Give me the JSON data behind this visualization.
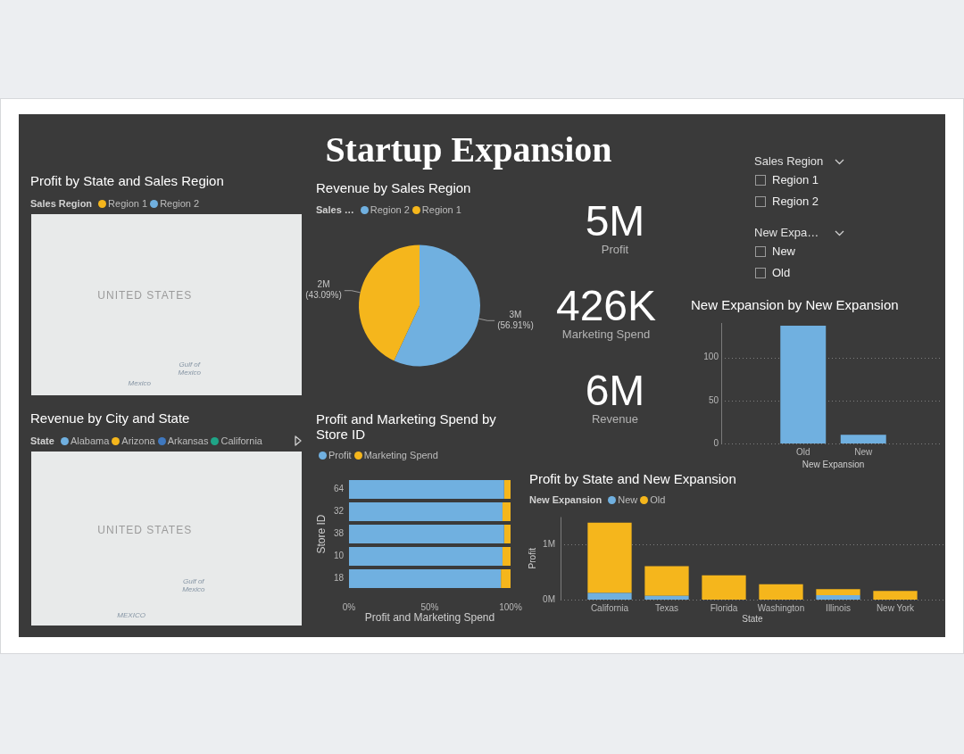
{
  "chart_data": [
    {
      "type": "other",
      "title": "Startup Expansion"
    },
    {
      "type": "other",
      "title": "Profit by State and Sales Region",
      "legend_title": "Sales Region",
      "legend": "top left",
      "series": [
        {
          "name": "Region 1",
          "color": "#f5b61c"
        },
        {
          "name": "Region 2",
          "color": "#70b0e0"
        }
      ],
      "annotations": [
        "UNITED STATES",
        "Gulf of Mexico",
        "Mexico"
      ]
    },
    {
      "type": "pie",
      "title": "Revenue by Sales Region",
      "legend_title": "Sales …",
      "legend": "top left",
      "categories": [
        "Region 2",
        "Region 1"
      ],
      "values": [
        56.91,
        43.09
      ],
      "colors": [
        "#70b0e0",
        "#f5b61c"
      ],
      "value_labels": [
        "3M (56.91%)",
        "2M (43.09%)"
      ]
    },
    {
      "type": "other",
      "categories": [
        "Profit",
        "Marketing Spend",
        "Revenue"
      ],
      "value_labels": [
        "5M",
        "426K",
        "6M"
      ]
    },
    {
      "type": "other",
      "title": "Sales Region",
      "categories": [
        "Region 1",
        "Region 2"
      ]
    },
    {
      "type": "other",
      "title": "New Expa…",
      "categories": [
        "New",
        "Old"
      ]
    },
    {
      "type": "bar",
      "title": "New Expansion by New Expansion",
      "categories": [
        "Old",
        "New"
      ],
      "values": [
        137,
        10
      ],
      "color": "#70b0e0",
      "ylim": [
        0,
        140
      ],
      "yticks": [
        0,
        50,
        100
      ],
      "xlabel": "New Expansion",
      "grid": "y"
    },
    {
      "type": "other",
      "title": "Revenue by City and State",
      "legend_title": "State",
      "legend": "top left",
      "series": [
        {
          "name": "Alabama",
          "color": "#70b0e0"
        },
        {
          "name": "Arizona",
          "color": "#f5b61c"
        },
        {
          "name": "Arkansas",
          "color": "#3f78bf"
        },
        {
          "name": "California",
          "color": "#1fa587"
        }
      ],
      "annotations": [
        "UNITED STATES",
        "Gulf of Mexico",
        "MEXICO"
      ]
    },
    {
      "type": "bar",
      "orientation": "horizontal",
      "stacked": true,
      "title": "Profit and Marketing Spend by Store ID",
      "categories": [
        "64",
        "32",
        "38",
        "10",
        "18"
      ],
      "series": [
        {
          "name": "Profit",
          "color": "#70b0e0",
          "values": [
            96,
            95,
            96,
            95,
            94
          ]
        },
        {
          "name": "Marketing Spend",
          "color": "#f5b61c",
          "values": [
            4,
            5,
            4,
            5,
            6
          ]
        }
      ],
      "xlim": [
        0,
        100
      ],
      "xticks": [
        {
          "value": 0,
          "label": "0%"
        },
        {
          "value": 50,
          "label": "50%"
        },
        {
          "value": 100,
          "label": "100%"
        }
      ],
      "xlabel": "Profit and Marketing Spend",
      "ylabel": "Store ID",
      "legend": "top left"
    },
    {
      "type": "bar",
      "stacked": true,
      "title": "Profit by State and New Expansion",
      "legend_title": "New Expansion",
      "legend": "top left",
      "categories": [
        "California",
        "Texas",
        "Florida",
        "Washington",
        "Illinois",
        "New York"
      ],
      "series": [
        {
          "name": "New",
          "color": "#70b0e0",
          "values": [
            0.12,
            0.07,
            null,
            null,
            0.08,
            null
          ]
        },
        {
          "name": "Old",
          "color": "#f5b61c",
          "values": [
            1.28,
            0.54,
            0.44,
            0.28,
            0.11,
            0.16
          ]
        }
      ],
      "ylim": [
        0,
        1.5
      ],
      "yticks": [
        {
          "value": 0,
          "label": "0M"
        },
        {
          "value": 1,
          "label": "1M"
        }
      ],
      "xlabel": "State",
      "ylabel": "Profit",
      "grid": "y"
    }
  ]
}
